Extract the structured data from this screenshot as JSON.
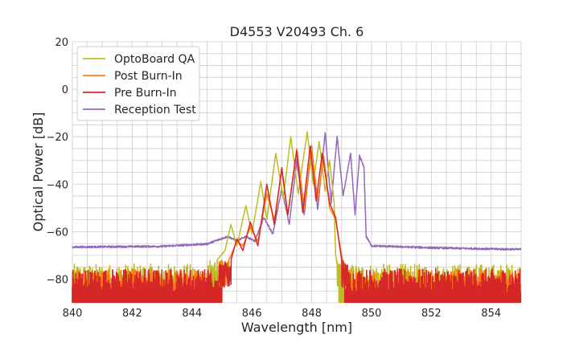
{
  "chart_data": {
    "type": "line",
    "title": "D4553 V20493 Ch. 6",
    "xlabel": "Wavelength [nm]",
    "ylabel": "Optical Power [dB]",
    "xlim": [
      840,
      855
    ],
    "ylim": [
      -90,
      20
    ],
    "x_ticks": [
      "840",
      "842",
      "844",
      "846",
      "848",
      "850",
      "852",
      "854"
    ],
    "y_ticks": [
      "20",
      "0",
      "−20",
      "−40",
      "−60",
      "−80"
    ],
    "grid": true,
    "legend_position": "top-left",
    "series": [
      {
        "name": "OptoBoard QA",
        "color": "#bcbd22",
        "noise_floor": -80,
        "points": [
          [
            840,
            -80
          ],
          [
            844.5,
            -77
          ],
          [
            845.1,
            -68
          ],
          [
            845.3,
            -57
          ],
          [
            845.5,
            -66
          ],
          [
            845.8,
            -49
          ],
          [
            846.0,
            -61
          ],
          [
            846.3,
            -39
          ],
          [
            846.5,
            -55
          ],
          [
            846.8,
            -27
          ],
          [
            847.05,
            -46
          ],
          [
            847.3,
            -20
          ],
          [
            847.55,
            -44
          ],
          [
            847.85,
            -18
          ],
          [
            848.05,
            -40
          ],
          [
            848.25,
            -22
          ],
          [
            848.45,
            -43
          ],
          [
            848.6,
            -30
          ],
          [
            848.75,
            -48
          ],
          [
            848.8,
            -70
          ],
          [
            849.0,
            -82
          ],
          [
            855,
            -82
          ]
        ]
      },
      {
        "name": "Post Burn-In",
        "color": "#ff7f0e",
        "noise_floor": -80,
        "points": [
          [
            840,
            -80
          ],
          [
            845.0,
            -78
          ],
          [
            845.3,
            -70
          ],
          [
            845.5,
            -64
          ],
          [
            845.7,
            -66
          ],
          [
            845.95,
            -58
          ],
          [
            846.2,
            -64
          ],
          [
            846.5,
            -44
          ],
          [
            846.75,
            -55
          ],
          [
            847.0,
            -34
          ],
          [
            847.2,
            -53
          ],
          [
            847.5,
            -25
          ],
          [
            847.75,
            -50
          ],
          [
            848.0,
            -25
          ],
          [
            848.2,
            -47
          ],
          [
            848.4,
            -28
          ],
          [
            848.6,
            -50
          ],
          [
            848.8,
            -55
          ],
          [
            849.0,
            -70
          ],
          [
            849.2,
            -82
          ],
          [
            855,
            -82
          ]
        ]
      },
      {
        "name": "Pre Burn-In",
        "color": "#d62728",
        "noise_floor": -80,
        "points": [
          [
            840,
            -80
          ],
          [
            845.0,
            -78
          ],
          [
            845.3,
            -72
          ],
          [
            845.5,
            -63
          ],
          [
            845.7,
            -68
          ],
          [
            845.95,
            -56
          ],
          [
            846.2,
            -66
          ],
          [
            846.5,
            -40
          ],
          [
            846.75,
            -57
          ],
          [
            847.0,
            -33
          ],
          [
            847.2,
            -53
          ],
          [
            847.5,
            -26
          ],
          [
            847.7,
            -52
          ],
          [
            847.95,
            -24
          ],
          [
            848.15,
            -47
          ],
          [
            848.35,
            -27
          ],
          [
            848.6,
            -48
          ],
          [
            848.8,
            -54
          ],
          [
            849.0,
            -72
          ],
          [
            849.2,
            -82
          ],
          [
            855,
            -82
          ]
        ]
      },
      {
        "name": "Reception Test",
        "color": "#9467bd",
        "noise_floor": null,
        "points": [
          [
            840,
            -66.5
          ],
          [
            843,
            -66.2
          ],
          [
            844.5,
            -65.2
          ],
          [
            845.2,
            -62
          ],
          [
            845.5,
            -64
          ],
          [
            845.8,
            -62
          ],
          [
            846.1,
            -64
          ],
          [
            846.4,
            -54
          ],
          [
            846.7,
            -61
          ],
          [
            847.0,
            -42
          ],
          [
            847.25,
            -57
          ],
          [
            847.5,
            -30
          ],
          [
            847.75,
            -53
          ],
          [
            848.0,
            -24
          ],
          [
            848.2,
            -51
          ],
          [
            848.45,
            -18
          ],
          [
            848.65,
            -48
          ],
          [
            848.85,
            -20
          ],
          [
            849.05,
            -45
          ],
          [
            849.3,
            -27
          ],
          [
            849.45,
            -53
          ],
          [
            849.6,
            -28
          ],
          [
            849.75,
            -33
          ],
          [
            849.82,
            -62
          ],
          [
            850,
            -66
          ],
          [
            852,
            -66.8
          ],
          [
            854,
            -67.3
          ],
          [
            855,
            -67.5
          ]
        ]
      }
    ]
  }
}
